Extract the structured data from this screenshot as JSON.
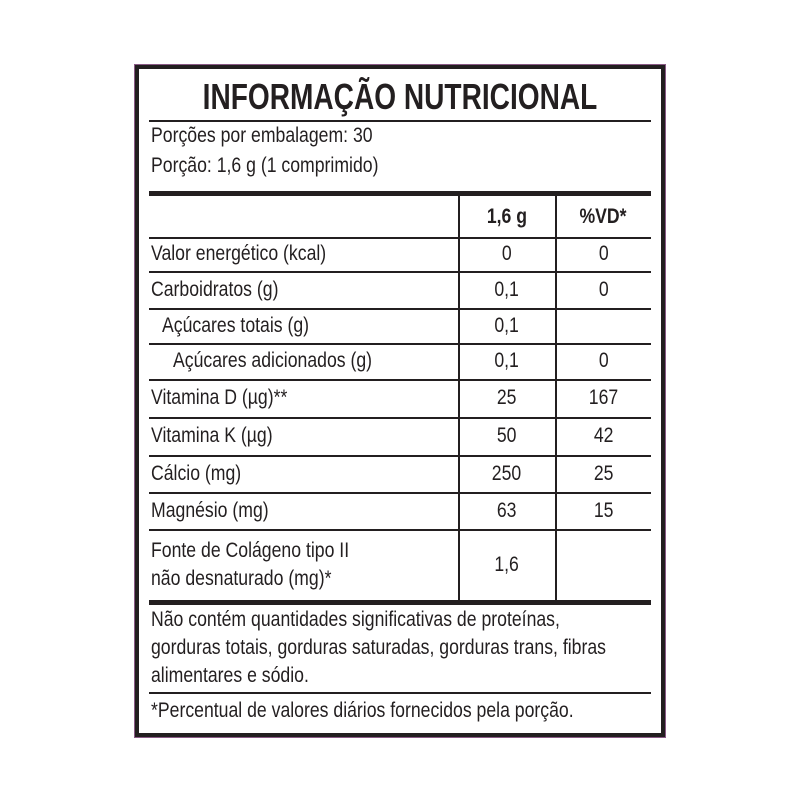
{
  "title": "INFORMAÇÃO NUTRICIONAL",
  "servings_per_package": "Porções por embalagem: 30",
  "serving_size": "Porção: 1,6 g (1 comprimido)",
  "columns": [
    "1,6 g",
    "%VD*"
  ],
  "rows": [
    {
      "label": "Valor energético (kcal)",
      "amount": "0",
      "dv": "0",
      "indent": 0
    },
    {
      "label": "Carboidratos (g)",
      "amount": "0,1",
      "dv": "0",
      "indent": 0
    },
    {
      "label": "Açúcares totais (g)",
      "amount": "0,1",
      "dv": "",
      "indent": 1
    },
    {
      "label": "Açúcares adicionados (g)",
      "amount": "0,1",
      "dv": "0",
      "indent": 2
    },
    {
      "label": "Vitamina D (µg)**",
      "amount": "25",
      "dv": "167",
      "indent": 0
    },
    {
      "label": "Vitamina K (µg)",
      "amount": "50",
      "dv": "42",
      "indent": 0
    },
    {
      "label": "Cálcio (mg)",
      "amount": "250",
      "dv": "25",
      "indent": 0
    },
    {
      "label": "Magnésio (mg)",
      "amount": "63",
      "dv": "15",
      "indent": 0
    },
    {
      "label": "Fonte de Colágeno tipo II",
      "label2": "não desnaturado (mg)*",
      "amount": "1,6",
      "dv": "",
      "indent": 0
    }
  ],
  "footnote_lines": [
    "Não contém quantidades significativas de proteínas,",
    "gorduras totais, gorduras saturadas, gorduras trans, fibras",
    "alimentares e sódio."
  ],
  "dv_note": "*Percentual de valores diários fornecidos pela porção."
}
